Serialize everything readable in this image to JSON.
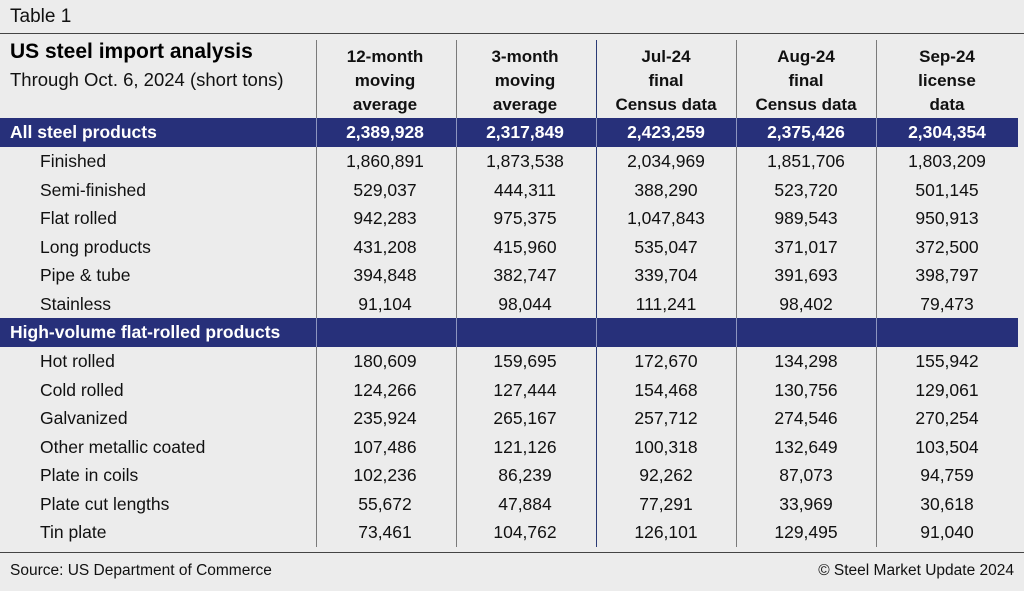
{
  "table_label": "Table 1",
  "header": {
    "title": "US steel import analysis",
    "subtitle": "Through Oct. 6, 2024 (short tons)"
  },
  "columns": [
    {
      "lines": [
        "12-month",
        "moving",
        "average"
      ]
    },
    {
      "lines": [
        "3-month",
        "moving",
        "average"
      ]
    },
    {
      "lines": [
        "Jul-24",
        "final",
        "Census data"
      ]
    },
    {
      "lines": [
        "Aug-24",
        "final",
        "Census data"
      ]
    },
    {
      "lines": [
        "Sep-24",
        "license",
        "data"
      ]
    }
  ],
  "sections": [
    {
      "label": "All steel products",
      "totals": [
        "2,389,928",
        "2,317,849",
        "2,423,259",
        "2,375,426",
        "2,304,354"
      ],
      "rows": [
        {
          "label": "Finished",
          "values": [
            "1,860,891",
            "1,873,538",
            "2,034,969",
            "1,851,706",
            "1,803,209"
          ]
        },
        {
          "label": "Semi-finished",
          "values": [
            "529,037",
            "444,311",
            "388,290",
            "523,720",
            "501,145"
          ]
        },
        {
          "label": "Flat rolled",
          "values": [
            "942,283",
            "975,375",
            "1,047,843",
            "989,543",
            "950,913"
          ]
        },
        {
          "label": "Long products",
          "values": [
            "431,208",
            "415,960",
            "535,047",
            "371,017",
            "372,500"
          ]
        },
        {
          "label": "Pipe & tube",
          "values": [
            "394,848",
            "382,747",
            "339,704",
            "391,693",
            "398,797"
          ]
        },
        {
          "label": "Stainless",
          "values": [
            "91,104",
            "98,044",
            "111,241",
            "98,402",
            "79,473"
          ]
        }
      ]
    },
    {
      "label": "High-volume flat-rolled products",
      "totals": [
        "",
        "",
        "",
        "",
        ""
      ],
      "rows": [
        {
          "label": "Hot rolled",
          "values": [
            "180,609",
            "159,695",
            "172,670",
            "134,298",
            "155,942"
          ]
        },
        {
          "label": "Cold rolled",
          "values": [
            "124,266",
            "127,444",
            "154,468",
            "130,756",
            "129,061"
          ]
        },
        {
          "label": "Galvanized",
          "values": [
            "235,924",
            "265,167",
            "257,712",
            "274,546",
            "270,254"
          ]
        },
        {
          "label": "Other metallic coated",
          "values": [
            "107,486",
            "121,126",
            "100,318",
            "132,649",
            "103,504"
          ]
        },
        {
          "label": "Plate in coils",
          "values": [
            "102,236",
            "86,239",
            "92,262",
            "87,073",
            "94,759"
          ]
        },
        {
          "label": "Plate cut lengths",
          "values": [
            "55,672",
            "47,884",
            "77,291",
            "33,969",
            "30,618"
          ]
        },
        {
          "label": "Tin plate",
          "values": [
            "73,461",
            "104,762",
            "126,101",
            "129,495",
            "91,040"
          ]
        }
      ]
    }
  ],
  "footer": {
    "source": "Source: US Department of Commerce",
    "copyright": "© Steel Market Update 2024"
  },
  "colors": {
    "band": "#27307a",
    "background": "#ececec"
  }
}
